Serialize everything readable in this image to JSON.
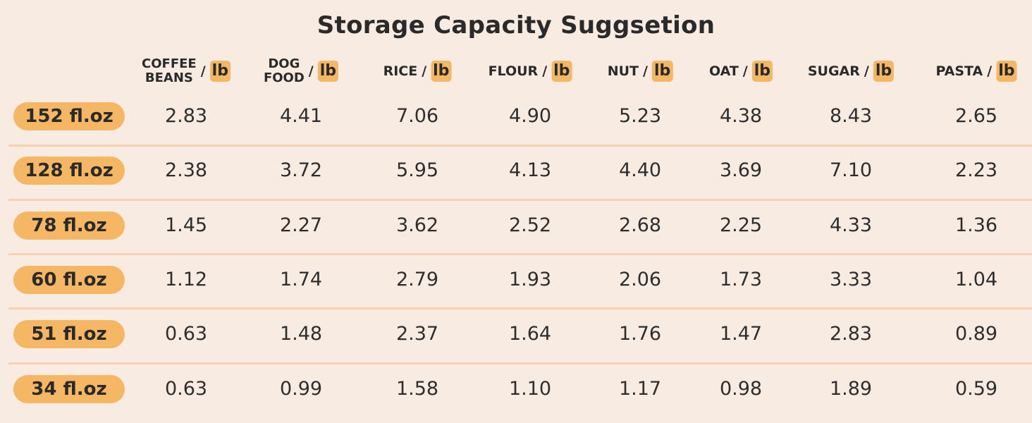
{
  "title": "Storage Capacity Suggsetion",
  "unit": "lb",
  "slash": "/",
  "columns": [
    {
      "lines": [
        "COFFEE",
        "BEANS"
      ]
    },
    {
      "lines": [
        "DOG",
        "FOOD"
      ]
    },
    {
      "lines": [
        "RICE"
      ]
    },
    {
      "lines": [
        "FLOUR"
      ]
    },
    {
      "lines": [
        "NUT"
      ]
    },
    {
      "lines": [
        "OAT"
      ]
    },
    {
      "lines": [
        "SUGAR"
      ]
    },
    {
      "lines": [
        "PASTA"
      ]
    }
  ],
  "rows": [
    {
      "capacity": "152 fl.oz",
      "values": [
        "2.83",
        "4.41",
        "7.06",
        "4.90",
        "5.23",
        "4.38",
        "8.43",
        "2.65"
      ]
    },
    {
      "capacity": "128 fl.oz",
      "values": [
        "2.38",
        "3.72",
        "5.95",
        "4.13",
        "4.40",
        "3.69",
        "7.10",
        "2.23"
      ]
    },
    {
      "capacity": "78 fl.oz",
      "values": [
        "1.45",
        "2.27",
        "3.62",
        "2.52",
        "2.68",
        "2.25",
        "4.33",
        "1.36"
      ]
    },
    {
      "capacity": "60 fl.oz",
      "values": [
        "1.12",
        "1.74",
        "2.79",
        "1.93",
        "2.06",
        "1.73",
        "3.33",
        "1.04"
      ]
    },
    {
      "capacity": "51 fl.oz",
      "values": [
        "0.63",
        "1.48",
        "2.37",
        "1.64",
        "1.76",
        "1.47",
        "2.83",
        "0.89"
      ]
    },
    {
      "capacity": "34 fl.oz",
      "values": [
        "0.63",
        "0.99",
        "1.58",
        "1.10",
        "1.17",
        "0.98",
        "1.89",
        "0.59"
      ]
    }
  ]
}
